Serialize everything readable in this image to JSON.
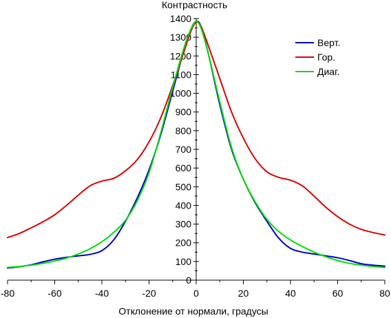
{
  "chart_data": {
    "type": "line",
    "title": "",
    "xlabel": "Отклонение от нормали, градусы",
    "ylabel": "Контрастность",
    "xlim": [
      -80,
      80
    ],
    "ylim": [
      0,
      1400
    ],
    "x_ticks": [
      -80,
      -60,
      -40,
      -20,
      0,
      20,
      40,
      60,
      80
    ],
    "y_ticks": [
      0,
      100,
      200,
      300,
      400,
      500,
      600,
      700,
      800,
      900,
      1000,
      1100,
      1200,
      1300,
      1400
    ],
    "grid": false,
    "legend_position": "top-right",
    "series": [
      {
        "name": "Верт.",
        "color": "#0000cc",
        "x": [
          -80,
          -75,
          -70,
          -65,
          -60,
          -55,
          -50,
          -45,
          -40,
          -35,
          -30,
          -25,
          -20,
          -15,
          -10,
          -5,
          -2,
          0,
          2,
          5,
          10,
          15,
          20,
          25,
          30,
          35,
          40,
          45,
          50,
          55,
          60,
          65,
          70,
          75,
          80
        ],
        "y": [
          65,
          72,
          82,
          98,
          112,
          122,
          130,
          138,
          158,
          215,
          315,
          440,
          590,
          780,
          1010,
          1240,
          1350,
          1385,
          1360,
          1220,
          940,
          700,
          540,
          415,
          315,
          225,
          170,
          150,
          140,
          130,
          120,
          105,
          88,
          80,
          75
        ]
      },
      {
        "name": "Гор.",
        "color": "#dd0000",
        "x": [
          -80,
          -75,
          -70,
          -65,
          -60,
          -55,
          -50,
          -45,
          -40,
          -35,
          -30,
          -25,
          -20,
          -15,
          -10,
          -5,
          -2,
          0,
          2,
          5,
          10,
          15,
          20,
          25,
          30,
          35,
          40,
          45,
          50,
          55,
          60,
          65,
          70,
          75,
          80
        ],
        "y": [
          228,
          250,
          280,
          312,
          350,
          400,
          455,
          505,
          530,
          545,
          585,
          645,
          740,
          870,
          1040,
          1230,
          1340,
          1380,
          1360,
          1260,
          1080,
          900,
          760,
          650,
          580,
          550,
          535,
          505,
          450,
          390,
          340,
          300,
          272,
          255,
          242
        ]
      },
      {
        "name": "Диаг.",
        "color": "#00dd00",
        "x": [
          -80,
          -75,
          -70,
          -65,
          -60,
          -55,
          -50,
          -45,
          -40,
          -35,
          -30,
          -25,
          -20,
          -15,
          -10,
          -5,
          -2,
          0,
          2,
          5,
          10,
          15,
          20,
          25,
          30,
          35,
          40,
          45,
          50,
          55,
          60,
          65,
          70,
          75,
          80
        ],
        "y": [
          68,
          73,
          80,
          90,
          102,
          118,
          140,
          168,
          205,
          255,
          320,
          425,
          575,
          790,
          1030,
          1250,
          1350,
          1385,
          1350,
          1220,
          955,
          710,
          540,
          420,
          325,
          260,
          215,
          180,
          150,
          125,
          105,
          90,
          80,
          73,
          68
        ]
      }
    ]
  }
}
